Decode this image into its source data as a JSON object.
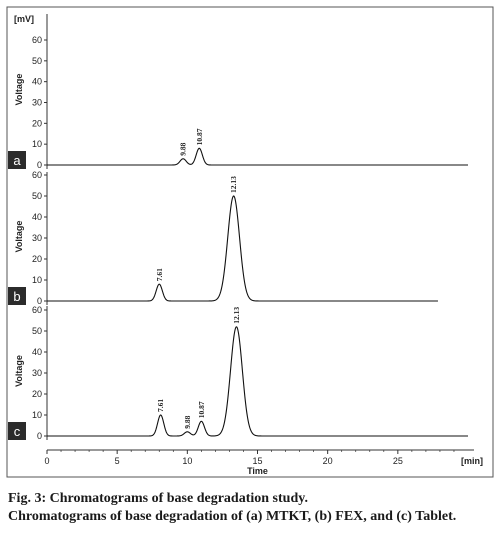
{
  "chart_data": [
    {
      "type": "line",
      "panel_label": "a",
      "ylabel": "Voltage",
      "y_unit": "[mV]",
      "ylim": [
        0,
        60
      ],
      "yticks": [
        0,
        10,
        20,
        30,
        40,
        50,
        60
      ],
      "xlim": [
        0,
        30
      ],
      "peaks": [
        {
          "label": "9.88",
          "x": 9.7,
          "height": 3
        },
        {
          "label": "10.87",
          "x": 10.85,
          "height": 8
        }
      ]
    },
    {
      "type": "line",
      "panel_label": "b",
      "ylabel": "Voltage",
      "ylim": [
        0,
        60
      ],
      "yticks": [
        0,
        10,
        20,
        30,
        40,
        50,
        60
      ],
      "xlim": [
        0,
        30
      ],
      "peaks": [
        {
          "label": "7.61",
          "x": 8.0,
          "height": 8
        },
        {
          "label": "12.13",
          "x": 13.3,
          "height": 50
        }
      ]
    },
    {
      "type": "line",
      "panel_label": "c",
      "ylabel": "Voltage",
      "ylim": [
        0,
        60
      ],
      "yticks": [
        0,
        10,
        20,
        30,
        40,
        50,
        60
      ],
      "xlim": [
        0,
        30
      ],
      "xticks": [
        0,
        5,
        10,
        15,
        20,
        25
      ],
      "xlabel": "Time",
      "x_unit": "[min]",
      "peaks": [
        {
          "label": "7.61",
          "x": 8.1,
          "height": 10
        },
        {
          "label": "9.88",
          "x": 10.0,
          "height": 2
        },
        {
          "label": "10.87",
          "x": 11.0,
          "height": 7
        },
        {
          "label": "12.13",
          "x": 13.5,
          "height": 52
        }
      ]
    }
  ],
  "caption": {
    "title": "Fig. 3: Chromatograms of base degradation study.",
    "description": "Chromatograms of base degradation of (a) MTKT, (b) FEX, and (c) Tablet."
  }
}
